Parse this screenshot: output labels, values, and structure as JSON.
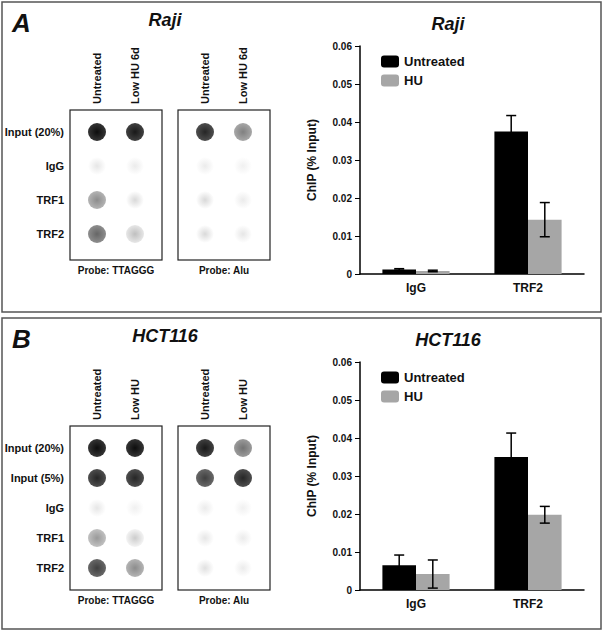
{
  "chart_data": [
    {
      "type": "bar",
      "title": "Raji",
      "y_label": "ChIP (% Input)",
      "categories": [
        "IgG",
        "TRF2"
      ],
      "series": [
        {
          "name": "Untreated",
          "color": "#000000",
          "values": [
            0.0012,
            0.0375
          ],
          "errors": [
            0.0002,
            0.0042
          ]
        },
        {
          "name": "HU",
          "color": "#a6a6a6",
          "values": [
            0.0008,
            0.0143
          ],
          "errors": [
            0.0002,
            0.0045
          ]
        }
      ],
      "ylim": [
        0,
        0.06
      ],
      "yticks": [
        0,
        0.01,
        0.02,
        0.03,
        0.04,
        0.05,
        0.06
      ],
      "grid": false,
      "legend": "top-left"
    },
    {
      "type": "bar",
      "title": "HCT116",
      "y_label": "ChIP (% Input)",
      "categories": [
        "IgG",
        "TRF2"
      ],
      "series": [
        {
          "name": "Untreated",
          "color": "#000000",
          "values": [
            0.0065,
            0.035
          ],
          "errors": [
            0.0027,
            0.0063
          ]
        },
        {
          "name": "HU",
          "color": "#a6a6a6",
          "values": [
            0.0042,
            0.0198
          ],
          "errors": [
            0.0037,
            0.0022
          ]
        }
      ],
      "ylim": [
        0,
        0.06
      ],
      "yticks": [
        0,
        0.01,
        0.02,
        0.03,
        0.04,
        0.05,
        0.06
      ],
      "grid": false,
      "legend": "top-left"
    }
  ],
  "panels": [
    {
      "label": "A",
      "title": "Raji",
      "columns": [
        "Untreated",
        "Low HU 6d"
      ],
      "rows": [
        "Input (20%)",
        "IgG",
        "TRF1",
        "TRF2"
      ],
      "blots": [
        {
          "probe": "Probe: TTAGGG",
          "intensity": [
            [
              0.95,
              0.9
            ],
            [
              0.1,
              0.08
            ],
            [
              0.45,
              0.15
            ],
            [
              0.6,
              0.25
            ]
          ]
        },
        {
          "probe": "Probe: Alu",
          "intensity": [
            [
              0.85,
              0.5
            ],
            [
              0.08,
              0.06
            ],
            [
              0.15,
              0.08
            ],
            [
              0.15,
              0.1
            ]
          ]
        }
      ]
    },
    {
      "label": "B",
      "title": "HCT116",
      "columns": [
        "Untreated",
        "Low HU"
      ],
      "rows": [
        "Input (20%)",
        "Input (5%)",
        "IgG",
        "TRF1",
        "TRF2"
      ],
      "blots": [
        {
          "probe": "Probe: TTAGGG",
          "intensity": [
            [
              0.95,
              0.95
            ],
            [
              0.85,
              0.85
            ],
            [
              0.1,
              0.06
            ],
            [
              0.4,
              0.2
            ],
            [
              0.75,
              0.45
            ]
          ]
        },
        {
          "probe": "Probe: Alu",
          "intensity": [
            [
              0.9,
              0.55
            ],
            [
              0.75,
              0.85
            ],
            [
              0.08,
              0.06
            ],
            [
              0.1,
              0.08
            ],
            [
              0.12,
              0.08
            ]
          ]
        }
      ]
    }
  ]
}
